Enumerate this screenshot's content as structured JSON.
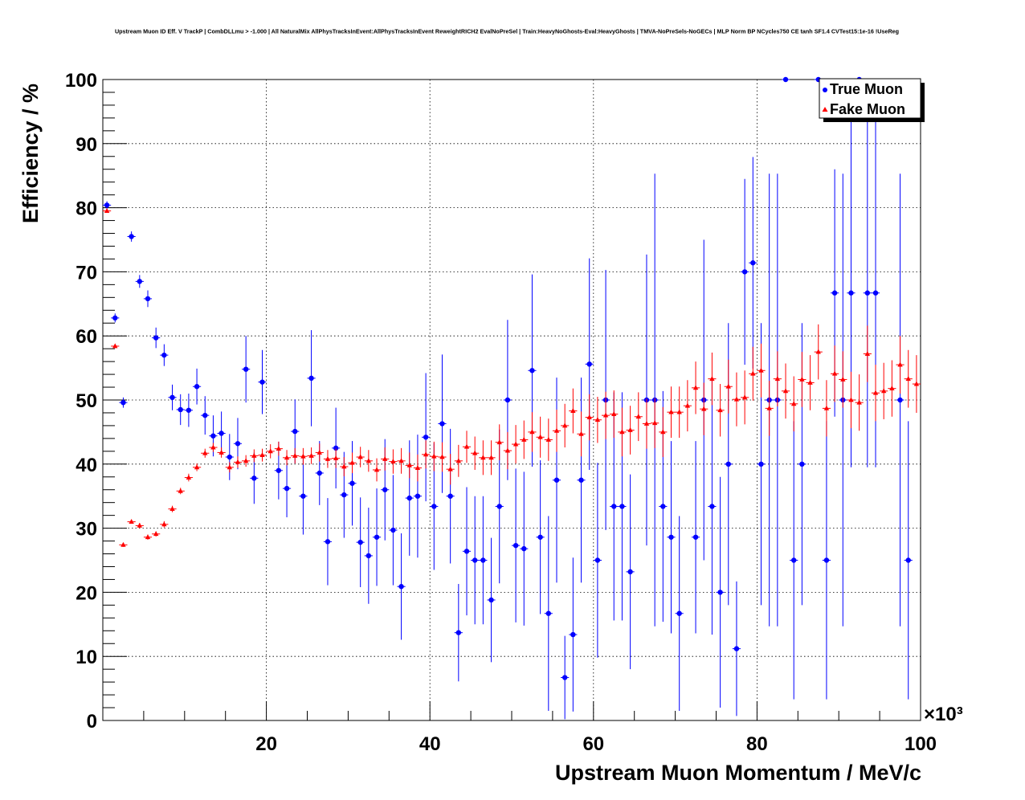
{
  "chart_data": {
    "type": "scatter",
    "title": "Upstream Muon ID Eff. V TrackP | CombDLLmu > -1.000 | All NaturalMix AllPhysTracksInEvent:AllPhysTracksInEvent ReweightRICH2 EvalNoPreSel | Train:HeavyNoGhosts-Eval:HeavyGhosts | TMVA-NoPreSels-NoGECs | MLP Norm BP NCycles750 CE tanh SF1.4 CVTest15:1e-16 !UseReg",
    "xlabel": "Upstream Muon Momentum / MeV/c",
    "ylabel": "Efficiency / %",
    "x_exponent_label": "×10³",
    "xlim": [
      0,
      100
    ],
    "ylim": [
      0,
      100
    ],
    "x_ticks": [
      20,
      40,
      60,
      80,
      100
    ],
    "y_ticks": [
      0,
      10,
      20,
      30,
      40,
      50,
      60,
      70,
      80,
      90,
      100
    ],
    "grid": true,
    "legend_position": "top-right",
    "series": [
      {
        "name": "True Muon",
        "color": "#0000ff",
        "marker": "circle",
        "points": [
          {
            "x": 0.5,
            "y": 80.4,
            "err": 0.6
          },
          {
            "x": 1.5,
            "y": 62.8,
            "err": 0.7
          },
          {
            "x": 2.5,
            "y": 49.6,
            "err": 0.8
          },
          {
            "x": 3.5,
            "y": 75.5,
            "err": 0.8
          },
          {
            "x": 4.5,
            "y": 68.5,
            "err": 1.0
          },
          {
            "x": 5.5,
            "y": 65.8,
            "err": 1.3
          },
          {
            "x": 6.5,
            "y": 59.7,
            "err": 1.6
          },
          {
            "x": 7.5,
            "y": 57.0,
            "err": 1.7
          },
          {
            "x": 8.5,
            "y": 50.4,
            "err": 2.0
          },
          {
            "x": 9.5,
            "y": 48.5,
            "err": 2.4
          },
          {
            "x": 10.5,
            "y": 48.4,
            "err": 2.6
          },
          {
            "x": 11.5,
            "y": 52.1,
            "err": 2.8
          },
          {
            "x": 12.5,
            "y": 47.6,
            "err": 3.0
          },
          {
            "x": 13.5,
            "y": 44.4,
            "err": 3.2
          },
          {
            "x": 14.5,
            "y": 44.8,
            "err": 3.4
          },
          {
            "x": 15.5,
            "y": 41.1,
            "err": 3.6
          },
          {
            "x": 16.5,
            "y": 43.2,
            "err": 4.0
          },
          {
            "x": 17.5,
            "y": 54.8,
            "err": 5.2
          },
          {
            "x": 18.5,
            "y": 37.8,
            "err": 4.0
          },
          {
            "x": 19.5,
            "y": 52.8,
            "err": 5.0
          },
          {
            "x": 21.5,
            "y": 39.0,
            "err": 4.5
          },
          {
            "x": 22.5,
            "y": 36.2,
            "err": 4.5
          },
          {
            "x": 23.5,
            "y": 45.1,
            "err": 5.0
          },
          {
            "x": 24.5,
            "y": 35.0,
            "err": 6.0
          },
          {
            "x": 25.5,
            "y": 53.4,
            "err": 7.5
          },
          {
            "x": 26.5,
            "y": 38.6,
            "err": 5.0
          },
          {
            "x": 27.5,
            "y": 27.9,
            "err": 6.8
          },
          {
            "x": 28.5,
            "y": 42.5,
            "err": 6.3
          },
          {
            "x": 29.5,
            "y": 35.2,
            "err": 6.7
          },
          {
            "x": 30.5,
            "y": 37.0,
            "err": 6.6
          },
          {
            "x": 31.5,
            "y": 27.8,
            "err": 7.0
          },
          {
            "x": 32.5,
            "y": 25.7,
            "err": 7.5
          },
          {
            "x": 33.5,
            "y": 28.6,
            "err": 7.6
          },
          {
            "x": 34.5,
            "y": 36.0,
            "err": 7.9
          },
          {
            "x": 35.5,
            "y": 29.7,
            "err": 8.6
          },
          {
            "x": 36.5,
            "y": 20.9,
            "err": 8.3
          },
          {
            "x": 37.5,
            "y": 34.7,
            "err": 9.0
          },
          {
            "x": 38.5,
            "y": 35.0,
            "err": 9.6
          },
          {
            "x": 39.5,
            "y": 44.2,
            "err": 10.0
          },
          {
            "x": 40.5,
            "y": 33.4,
            "err": 9.9
          },
          {
            "x": 41.5,
            "y": 46.3,
            "err": 10.8
          },
          {
            "x": 42.5,
            "y": 35.0,
            "err": 10.5
          },
          {
            "x": 43.5,
            "y": 13.7,
            "err": 7.6
          },
          {
            "x": 44.5,
            "y": 26.4,
            "err": 10.0
          },
          {
            "x": 45.5,
            "y": 25.0,
            "err": 10.0
          },
          {
            "x": 46.5,
            "y": 25.0,
            "err": 10.0
          },
          {
            "x": 47.5,
            "y": 18.8,
            "err": 9.7
          },
          {
            "x": 48.5,
            "y": 33.4,
            "err": 12.0
          },
          {
            "x": 49.5,
            "y": 50.0,
            "err": 12.5
          },
          {
            "x": 50.5,
            "y": 27.3,
            "err": 12.0
          },
          {
            "x": 51.5,
            "y": 26.8,
            "err": 12.0
          },
          {
            "x": 52.5,
            "y": 54.6,
            "err": 15.0
          },
          {
            "x": 53.5,
            "y": 28.6,
            "err": 12.0
          },
          {
            "x": 54.5,
            "y": 16.7,
            "err": 15.2
          },
          {
            "x": 55.5,
            "y": 37.5,
            "err": 16.0
          },
          {
            "x": 56.5,
            "y": 6.7,
            "err": 6.5
          },
          {
            "x": 57.5,
            "y": 13.4,
            "err": 12.0
          },
          {
            "x": 58.5,
            "y": 37.5,
            "err": 16.0
          },
          {
            "x": 59.5,
            "y": 55.6,
            "err": 16.5
          },
          {
            "x": 60.5,
            "y": 25.0,
            "err": 15.2
          },
          {
            "x": 61.5,
            "y": 50.0,
            "err": 20.3
          },
          {
            "x": 62.5,
            "y": 33.4,
            "err": 17.8
          },
          {
            "x": 63.5,
            "y": 33.4,
            "err": 17.8
          },
          {
            "x": 64.5,
            "y": 23.2,
            "err": 15.2
          },
          {
            "x": 66.5,
            "y": 50.0,
            "err": 22.7
          },
          {
            "x": 67.5,
            "y": 50.0,
            "err": 35.3
          },
          {
            "x": 68.5,
            "y": 33.4,
            "err": 18.0
          },
          {
            "x": 69.5,
            "y": 28.6,
            "err": 15.0
          },
          {
            "x": 70.5,
            "y": 16.7,
            "err": 15.2
          },
          {
            "x": 72.5,
            "y": 28.6,
            "err": 15.0
          },
          {
            "x": 73.5,
            "y": 50.0,
            "err": 25.0
          },
          {
            "x": 74.5,
            "y": 33.4,
            "err": 20.0
          },
          {
            "x": 75.5,
            "y": 20.0,
            "err": 18.0
          },
          {
            "x": 76.5,
            "y": 40.0,
            "err": 22.0
          },
          {
            "x": 77.5,
            "y": 11.2,
            "err": 10.5
          },
          {
            "x": 78.5,
            "y": 70.0,
            "err": 14.5
          },
          {
            "x": 79.5,
            "y": 71.4,
            "err": 16.5
          },
          {
            "x": 80.5,
            "y": 40.0,
            "err": 22.0
          },
          {
            "x": 81.5,
            "y": 50.0,
            "err": 35.3
          },
          {
            "x": 82.5,
            "y": 50.0,
            "err": 35.3
          },
          {
            "x": 83.5,
            "y": 100.0,
            "err": 0
          },
          {
            "x": 84.5,
            "y": 25.0,
            "err": 21.7
          },
          {
            "x": 85.5,
            "y": 40.0,
            "err": 22.0
          },
          {
            "x": 87.5,
            "y": 100.0,
            "err": 0
          },
          {
            "x": 88.5,
            "y": 25.0,
            "err": 21.7
          },
          {
            "x": 89.5,
            "y": 66.7,
            "err": 19.3
          },
          {
            "x": 90.5,
            "y": 50.0,
            "err": 35.3
          },
          {
            "x": 91.5,
            "y": 66.7,
            "err": 27.2
          },
          {
            "x": 92.5,
            "y": 100.0,
            "err": 0
          },
          {
            "x": 93.5,
            "y": 66.7,
            "err": 27.2
          },
          {
            "x": 94.5,
            "y": 66.7,
            "err": 27.2
          },
          {
            "x": 97.5,
            "y": 50.0,
            "err": 35.3
          },
          {
            "x": 98.5,
            "y": 25.0,
            "err": 21.7
          }
        ]
      },
      {
        "name": "Fake Muon",
        "color": "#ff0000",
        "marker": "triangle",
        "points": [
          {
            "x": 0.5,
            "y": 79.5,
            "err": 0.3
          },
          {
            "x": 1.5,
            "y": 58.4,
            "err": 0.3
          },
          {
            "x": 2.5,
            "y": 27.4,
            "err": 0.3
          },
          {
            "x": 3.5,
            "y": 31.0,
            "err": 0.3
          },
          {
            "x": 4.5,
            "y": 30.4,
            "err": 0.4
          },
          {
            "x": 5.5,
            "y": 28.6,
            "err": 0.4
          },
          {
            "x": 6.5,
            "y": 29.1,
            "err": 0.4
          },
          {
            "x": 7.5,
            "y": 30.6,
            "err": 0.5
          },
          {
            "x": 8.5,
            "y": 33.0,
            "err": 0.5
          },
          {
            "x": 9.5,
            "y": 35.8,
            "err": 0.5
          },
          {
            "x": 10.5,
            "y": 37.9,
            "err": 0.6
          },
          {
            "x": 11.5,
            "y": 39.5,
            "err": 0.6
          },
          {
            "x": 12.5,
            "y": 41.7,
            "err": 0.7
          },
          {
            "x": 13.5,
            "y": 42.6,
            "err": 0.7
          },
          {
            "x": 14.5,
            "y": 41.8,
            "err": 0.8
          },
          {
            "x": 15.5,
            "y": 39.5,
            "err": 0.8
          },
          {
            "x": 16.5,
            "y": 40.3,
            "err": 0.9
          },
          {
            "x": 17.5,
            "y": 40.5,
            "err": 0.9
          },
          {
            "x": 18.5,
            "y": 41.3,
            "err": 1.0
          },
          {
            "x": 19.5,
            "y": 41.4,
            "err": 1.0
          },
          {
            "x": 20.5,
            "y": 42.0,
            "err": 1.1
          },
          {
            "x": 21.5,
            "y": 42.4,
            "err": 1.1
          },
          {
            "x": 22.5,
            "y": 41.0,
            "err": 1.2
          },
          {
            "x": 23.5,
            "y": 41.3,
            "err": 1.2
          },
          {
            "x": 24.5,
            "y": 41.2,
            "err": 1.3
          },
          {
            "x": 25.5,
            "y": 41.3,
            "err": 1.3
          },
          {
            "x": 26.5,
            "y": 41.8,
            "err": 1.4
          },
          {
            "x": 27.5,
            "y": 40.8,
            "err": 1.4
          },
          {
            "x": 28.5,
            "y": 40.9,
            "err": 1.5
          },
          {
            "x": 29.5,
            "y": 39.6,
            "err": 1.5
          },
          {
            "x": 30.5,
            "y": 40.2,
            "err": 1.6
          },
          {
            "x": 31.5,
            "y": 41.1,
            "err": 1.6
          },
          {
            "x": 32.5,
            "y": 40.5,
            "err": 1.7
          },
          {
            "x": 33.5,
            "y": 39.1,
            "err": 1.8
          },
          {
            "x": 34.5,
            "y": 40.8,
            "err": 1.8
          },
          {
            "x": 35.5,
            "y": 40.4,
            "err": 1.9
          },
          {
            "x": 36.5,
            "y": 40.5,
            "err": 2.0
          },
          {
            "x": 37.5,
            "y": 39.8,
            "err": 2.0
          },
          {
            "x": 38.5,
            "y": 39.4,
            "err": 2.1
          },
          {
            "x": 39.5,
            "y": 41.5,
            "err": 2.2
          },
          {
            "x": 40.5,
            "y": 41.2,
            "err": 2.3
          },
          {
            "x": 41.5,
            "y": 41.1,
            "err": 2.3
          },
          {
            "x": 42.5,
            "y": 39.2,
            "err": 2.4
          },
          {
            "x": 43.5,
            "y": 40.5,
            "err": 2.5
          },
          {
            "x": 44.5,
            "y": 42.7,
            "err": 2.5
          },
          {
            "x": 45.5,
            "y": 41.7,
            "err": 2.6
          },
          {
            "x": 46.5,
            "y": 41.0,
            "err": 2.7
          },
          {
            "x": 47.5,
            "y": 41.0,
            "err": 2.7
          },
          {
            "x": 48.5,
            "y": 43.4,
            "err": 2.8
          },
          {
            "x": 49.5,
            "y": 42.1,
            "err": 2.9
          },
          {
            "x": 50.5,
            "y": 43.1,
            "err": 3.0
          },
          {
            "x": 51.5,
            "y": 43.8,
            "err": 3.0
          },
          {
            "x": 52.5,
            "y": 45.0,
            "err": 3.1
          },
          {
            "x": 53.5,
            "y": 44.2,
            "err": 3.2
          },
          {
            "x": 54.5,
            "y": 43.8,
            "err": 3.3
          },
          {
            "x": 55.5,
            "y": 45.2,
            "err": 3.3
          },
          {
            "x": 56.5,
            "y": 46.0,
            "err": 3.4
          },
          {
            "x": 57.5,
            "y": 48.3,
            "err": 3.5
          },
          {
            "x": 58.5,
            "y": 44.7,
            "err": 3.5
          },
          {
            "x": 59.5,
            "y": 47.3,
            "err": 3.6
          },
          {
            "x": 60.5,
            "y": 46.9,
            "err": 3.6
          },
          {
            "x": 61.5,
            "y": 47.6,
            "err": 3.7
          },
          {
            "x": 62.5,
            "y": 47.8,
            "err": 3.7
          },
          {
            "x": 63.5,
            "y": 45.0,
            "err": 3.8
          },
          {
            "x": 64.5,
            "y": 45.3,
            "err": 3.8
          },
          {
            "x": 65.5,
            "y": 47.4,
            "err": 3.8
          },
          {
            "x": 66.5,
            "y": 46.3,
            "err": 3.9
          },
          {
            "x": 67.5,
            "y": 46.4,
            "err": 3.9
          },
          {
            "x": 68.5,
            "y": 45.0,
            "err": 3.9
          },
          {
            "x": 69.5,
            "y": 48.1,
            "err": 4.0
          },
          {
            "x": 70.5,
            "y": 48.1,
            "err": 4.0
          },
          {
            "x": 71.5,
            "y": 49.1,
            "err": 4.0
          },
          {
            "x": 72.5,
            "y": 51.9,
            "err": 4.1
          },
          {
            "x": 73.5,
            "y": 48.6,
            "err": 4.1
          },
          {
            "x": 74.5,
            "y": 53.3,
            "err": 4.1
          },
          {
            "x": 75.5,
            "y": 48.4,
            "err": 4.1
          },
          {
            "x": 76.5,
            "y": 52.1,
            "err": 4.2
          },
          {
            "x": 77.5,
            "y": 50.1,
            "err": 4.2
          },
          {
            "x": 78.5,
            "y": 50.4,
            "err": 4.2
          },
          {
            "x": 79.5,
            "y": 54.1,
            "err": 4.2
          },
          {
            "x": 80.5,
            "y": 54.6,
            "err": 4.2
          },
          {
            "x": 81.5,
            "y": 48.7,
            "err": 4.3
          },
          {
            "x": 82.5,
            "y": 53.3,
            "err": 4.3
          },
          {
            "x": 83.5,
            "y": 51.4,
            "err": 4.3
          },
          {
            "x": 84.5,
            "y": 49.4,
            "err": 4.3
          },
          {
            "x": 85.5,
            "y": 53.2,
            "err": 4.3
          },
          {
            "x": 86.5,
            "y": 52.7,
            "err": 4.3
          },
          {
            "x": 87.5,
            "y": 57.5,
            "err": 4.3
          },
          {
            "x": 88.5,
            "y": 48.7,
            "err": 4.4
          },
          {
            "x": 89.5,
            "y": 54.1,
            "err": 4.4
          },
          {
            "x": 90.5,
            "y": 53.2,
            "err": 4.4
          },
          {
            "x": 91.5,
            "y": 50.0,
            "err": 4.4
          },
          {
            "x": 92.5,
            "y": 49.6,
            "err": 4.4
          },
          {
            "x": 93.5,
            "y": 57.2,
            "err": 4.4
          },
          {
            "x": 94.5,
            "y": 51.1,
            "err": 4.4
          },
          {
            "x": 95.5,
            "y": 51.4,
            "err": 4.4
          },
          {
            "x": 96.5,
            "y": 51.8,
            "err": 4.4
          },
          {
            "x": 97.5,
            "y": 55.5,
            "err": 4.5
          },
          {
            "x": 98.5,
            "y": 53.3,
            "err": 4.5
          },
          {
            "x": 99.5,
            "y": 52.5,
            "err": 4.5
          }
        ]
      }
    ]
  }
}
